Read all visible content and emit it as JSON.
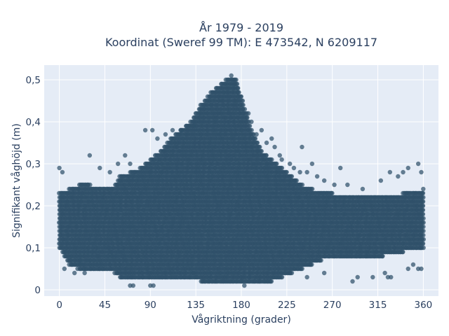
{
  "chart_data": {
    "type": "scatter",
    "title_line1": "År 1979 - 2019",
    "title_line2": "Koordinat (Sweref 99 TM): E 473542, N 6209117",
    "xlabel": "Vågriktning (grader)",
    "ylabel": "Signifikant våghöjd (m)",
    "xlim": [
      -15,
      375
    ],
    "ylim": [
      -0.015,
      0.535
    ],
    "x_ticks": [
      0,
      45,
      90,
      135,
      180,
      225,
      270,
      315,
      360
    ],
    "x_tick_labels": [
      "0",
      "45",
      "90",
      "135",
      "180",
      "225",
      "270",
      "315",
      "360"
    ],
    "y_ticks": [
      0,
      0.1,
      0.2,
      0.3,
      0.4,
      0.5
    ],
    "y_tick_labels": [
      "0",
      "0,1",
      "0,2",
      "0,3",
      "0,4",
      "0,5"
    ],
    "grid": true,
    "marker_color": "#2f5169",
    "background_color": "#e5ecf6",
    "envelope": {
      "x": [
        0,
        10,
        20,
        30,
        45,
        55,
        60,
        70,
        80,
        90,
        100,
        110,
        120,
        130,
        140,
        150,
        160,
        165,
        170,
        175,
        180,
        185,
        190,
        200,
        210,
        220,
        230,
        240,
        250,
        260,
        270,
        280,
        300,
        320,
        340,
        360
      ],
      "lower": [
        0.1,
        0.06,
        0.05,
        0.05,
        0.05,
        0.04,
        0.03,
        0.03,
        0.03,
        0.03,
        0.03,
        0.03,
        0.03,
        0.03,
        0.02,
        0.02,
        0.02,
        0.02,
        0.02,
        0.02,
        0.02,
        0.02,
        0.02,
        0.02,
        0.02,
        0.03,
        0.04,
        0.05,
        0.06,
        0.07,
        0.08,
        0.08,
        0.08,
        0.08,
        0.09,
        0.1
      ],
      "upper": [
        0.23,
        0.24,
        0.25,
        0.25,
        0.24,
        0.25,
        0.27,
        0.28,
        0.29,
        0.31,
        0.33,
        0.36,
        0.38,
        0.4,
        0.44,
        0.47,
        0.49,
        0.5,
        0.51,
        0.5,
        0.46,
        0.42,
        0.38,
        0.33,
        0.31,
        0.29,
        0.27,
        0.25,
        0.24,
        0.23,
        0.23,
        0.22,
        0.22,
        0.22,
        0.23,
        0.24
      ]
    },
    "outliers": [
      {
        "x": 0,
        "y": 0.29
      },
      {
        "x": 3,
        "y": 0.28
      },
      {
        "x": 30,
        "y": 0.32
      },
      {
        "x": 40,
        "y": 0.29
      },
      {
        "x": 50,
        "y": 0.28
      },
      {
        "x": 58,
        "y": 0.3
      },
      {
        "x": 65,
        "y": 0.32
      },
      {
        "x": 70,
        "y": 0.3
      },
      {
        "x": 85,
        "y": 0.38
      },
      {
        "x": 92,
        "y": 0.38
      },
      {
        "x": 97,
        "y": 0.36
      },
      {
        "x": 105,
        "y": 0.37
      },
      {
        "x": 112,
        "y": 0.38
      },
      {
        "x": 120,
        "y": 0.38
      },
      {
        "x": 128,
        "y": 0.39
      },
      {
        "x": 132,
        "y": 0.39
      },
      {
        "x": 187,
        "y": 0.42
      },
      {
        "x": 190,
        "y": 0.4
      },
      {
        "x": 195,
        "y": 0.37
      },
      {
        "x": 200,
        "y": 0.38
      },
      {
        "x": 205,
        "y": 0.35
      },
      {
        "x": 210,
        "y": 0.36
      },
      {
        "x": 213,
        "y": 0.34
      },
      {
        "x": 218,
        "y": 0.32
      },
      {
        "x": 220,
        "y": 0.31
      },
      {
        "x": 228,
        "y": 0.3
      },
      {
        "x": 232,
        "y": 0.29
      },
      {
        "x": 238,
        "y": 0.28
      },
      {
        "x": 240,
        "y": 0.34
      },
      {
        "x": 245,
        "y": 0.28
      },
      {
        "x": 250,
        "y": 0.3
      },
      {
        "x": 255,
        "y": 0.27
      },
      {
        "x": 262,
        "y": 0.26
      },
      {
        "x": 272,
        "y": 0.25
      },
      {
        "x": 278,
        "y": 0.29
      },
      {
        "x": 285,
        "y": 0.25
      },
      {
        "x": 300,
        "y": 0.24
      },
      {
        "x": 318,
        "y": 0.26
      },
      {
        "x": 327,
        "y": 0.28
      },
      {
        "x": 335,
        "y": 0.27
      },
      {
        "x": 340,
        "y": 0.28
      },
      {
        "x": 345,
        "y": 0.29
      },
      {
        "x": 355,
        "y": 0.3
      },
      {
        "x": 358,
        "y": 0.28
      },
      {
        "x": 70,
        "y": 0.01
      },
      {
        "x": 73,
        "y": 0.01
      },
      {
        "x": 90,
        "y": 0.01
      },
      {
        "x": 93,
        "y": 0.01
      },
      {
        "x": 183,
        "y": 0.01
      },
      {
        "x": 245,
        "y": 0.03
      },
      {
        "x": 262,
        "y": 0.04
      },
      {
        "x": 290,
        "y": 0.02
      },
      {
        "x": 295,
        "y": 0.03
      },
      {
        "x": 310,
        "y": 0.03
      },
      {
        "x": 322,
        "y": 0.04
      },
      {
        "x": 325,
        "y": 0.03
      },
      {
        "x": 328,
        "y": 0.03
      },
      {
        "x": 345,
        "y": 0.05
      },
      {
        "x": 350,
        "y": 0.06
      },
      {
        "x": 355,
        "y": 0.05
      },
      {
        "x": 358,
        "y": 0.05
      },
      {
        "x": 5,
        "y": 0.05
      },
      {
        "x": 15,
        "y": 0.04
      },
      {
        "x": 18,
        "y": 0.05
      },
      {
        "x": 25,
        "y": 0.04
      }
    ]
  }
}
